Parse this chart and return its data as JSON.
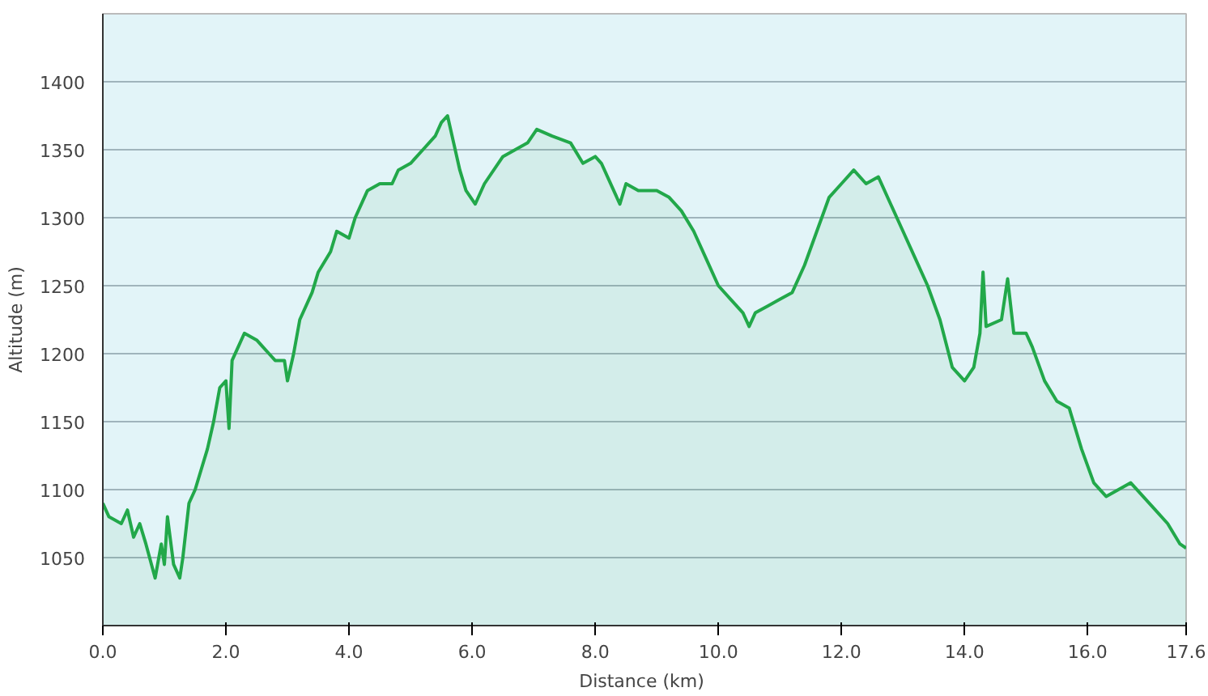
{
  "chart_data": {
    "type": "area",
    "xlabel": "Distance  (km)",
    "ylabel": "Altitude (m)",
    "xlim": [
      0,
      17.6
    ],
    "ylim": [
      1000,
      1450
    ],
    "xticks": [
      {
        "value": 0,
        "label": "0.0"
      },
      {
        "value": 2,
        "label": "2.0"
      },
      {
        "value": 4,
        "label": "4.0"
      },
      {
        "value": 6,
        "label": "6.0"
      },
      {
        "value": 8,
        "label": "8.0"
      },
      {
        "value": 10,
        "label": "10.0"
      },
      {
        "value": 12,
        "label": "12.0"
      },
      {
        "value": 14,
        "label": "14.0"
      },
      {
        "value": 16,
        "label": "16.0"
      },
      {
        "value": 17.6,
        "label": "17.6"
      }
    ],
    "yticks": [
      1050,
      1100,
      1150,
      1200,
      1250,
      1300,
      1350,
      1400
    ],
    "grid": "y",
    "line_style": "solid",
    "marker": "none",
    "series": [
      {
        "color": "#22a84a",
        "x": [
          0.0,
          0.1,
          0.3,
          0.4,
          0.5,
          0.6,
          0.7,
          0.85,
          0.95,
          1.0,
          1.05,
          1.15,
          1.25,
          1.3,
          1.4,
          1.5,
          1.7,
          1.8,
          1.9,
          2.0,
          2.05,
          2.1,
          2.2,
          2.3,
          2.5,
          2.6,
          2.7,
          2.8,
          2.95,
          3.0,
          3.1,
          3.2,
          3.4,
          3.5,
          3.7,
          3.8,
          4.0,
          4.1,
          4.3,
          4.5,
          4.7,
          4.8,
          5.0,
          5.2,
          5.4,
          5.5,
          5.6,
          5.7,
          5.8,
          5.9,
          6.05,
          6.2,
          6.5,
          6.7,
          6.9,
          7.05,
          7.3,
          7.6,
          7.8,
          8.0,
          8.1,
          8.3,
          8.4,
          8.5,
          8.7,
          9.0,
          9.2,
          9.4,
          9.6,
          9.8,
          10.0,
          10.2,
          10.4,
          10.5,
          10.6,
          10.8,
          11.0,
          11.2,
          11.4,
          11.6,
          11.8,
          12.0,
          12.2,
          12.4,
          12.6,
          12.8,
          13.0,
          13.2,
          13.4,
          13.6,
          13.8,
          14.0,
          14.15,
          14.25,
          14.3,
          14.35,
          14.6,
          14.7,
          14.8,
          15.0,
          15.1,
          15.3,
          15.5,
          15.7,
          15.9,
          16.1,
          16.3,
          16.5,
          16.7,
          16.9,
          17.1,
          17.3,
          17.5,
          17.6
        ],
        "values": [
          1090,
          1080,
          1075,
          1085,
          1065,
          1075,
          1060,
          1035,
          1060,
          1045,
          1080,
          1045,
          1035,
          1050,
          1090,
          1100,
          1130,
          1150,
          1175,
          1180,
          1145,
          1195,
          1205,
          1215,
          1210,
          1205,
          1200,
          1195,
          1195,
          1180,
          1200,
          1225,
          1245,
          1260,
          1275,
          1290,
          1285,
          1300,
          1320,
          1325,
          1325,
          1335,
          1340,
          1350,
          1360,
          1370,
          1375,
          1355,
          1335,
          1320,
          1310,
          1325,
          1345,
          1350,
          1355,
          1365,
          1360,
          1355,
          1340,
          1345,
          1340,
          1320,
          1310,
          1325,
          1320,
          1320,
          1315,
          1305,
          1290,
          1270,
          1250,
          1240,
          1230,
          1220,
          1230,
          1235,
          1240,
          1245,
          1265,
          1290,
          1315,
          1325,
          1335,
          1325,
          1330,
          1310,
          1290,
          1270,
          1250,
          1225,
          1190,
          1180,
          1190,
          1215,
          1260,
          1220,
          1225,
          1255,
          1215,
          1215,
          1205,
          1180,
          1165,
          1160,
          1130,
          1105,
          1095,
          1100,
          1105,
          1095,
          1085,
          1075,
          1060,
          1057
        ]
      }
    ]
  }
}
